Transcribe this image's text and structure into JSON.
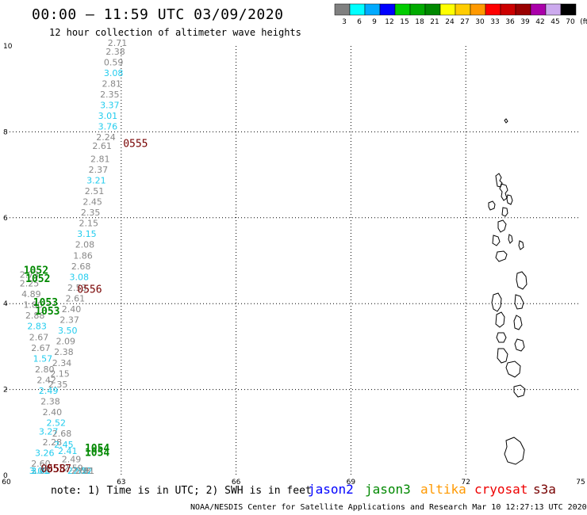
{
  "colors": {
    "jason2": "#0000ff",
    "jason3": "#008800",
    "altika": "#ff9900",
    "cryosat": "#ee0000",
    "s3a": "#770000",
    "grey_label": "#888888",
    "cyan_label": "#22ccee",
    "grid": "#000000",
    "land": "#000000"
  },
  "chart_data": {
    "type": "scatter",
    "title": "00:00 – 11:59 UTC 03/09/2020",
    "subtitle": "12 hour collection of altimeter wave heights",
    "xlim": [
      60,
      75
    ],
    "ylim": [
      0,
      10
    ],
    "x_ticks": [
      "60",
      "63",
      "66",
      "69",
      "72",
      "75"
    ],
    "y_ticks": [
      "0",
      "2",
      "4",
      "6",
      "8",
      "10"
    ],
    "grid": true,
    "colorbar": {
      "labels": [
        "3",
        "6",
        "9",
        "12",
        "15",
        "18",
        "21",
        "24",
        "27",
        "30",
        "33",
        "36",
        "39",
        "42",
        "45",
        "70",
        "(ft)"
      ],
      "colors": [
        "#808080",
        "#00ffff",
        "#00aaff",
        "#0000ff",
        "#00cc00",
        "#00aa00",
        "#008800",
        "#ffff00",
        "#ffcc00",
        "#ff9900",
        "#ff0000",
        "#cc0000",
        "#990000",
        "#aa00aa",
        "#ccaaee",
        "#000000"
      ]
    },
    "swh_points": [
      {
        "x": 62.9,
        "y": 10.0,
        "v": "2.71",
        "c": "grey"
      },
      {
        "x": 62.85,
        "y": 9.8,
        "v": "2.38",
        "c": "grey"
      },
      {
        "x": 62.8,
        "y": 9.55,
        "v": "0.59",
        "c": "grey"
      },
      {
        "x": 62.8,
        "y": 9.3,
        "v": "3.08",
        "c": "cyan"
      },
      {
        "x": 62.75,
        "y": 9.05,
        "v": "2.81",
        "c": "grey"
      },
      {
        "x": 62.7,
        "y": 8.8,
        "v": "2.35",
        "c": "grey"
      },
      {
        "x": 62.7,
        "y": 8.55,
        "v": "3.37",
        "c": "cyan"
      },
      {
        "x": 62.65,
        "y": 8.3,
        "v": "3.01",
        "c": "cyan"
      },
      {
        "x": 62.65,
        "y": 8.05,
        "v": "3.76",
        "c": "cyan"
      },
      {
        "x": 62.6,
        "y": 7.8,
        "v": "2.24",
        "c": "grey"
      },
      {
        "x": 62.5,
        "y": 7.6,
        "v": "2.61",
        "c": "grey"
      },
      {
        "x": 62.45,
        "y": 7.3,
        "v": "2.81",
        "c": "grey"
      },
      {
        "x": 62.4,
        "y": 7.05,
        "v": "2.37",
        "c": "grey"
      },
      {
        "x": 62.35,
        "y": 6.8,
        "v": "3.21",
        "c": "cyan"
      },
      {
        "x": 62.3,
        "y": 6.55,
        "v": "2.51",
        "c": "grey"
      },
      {
        "x": 62.25,
        "y": 6.3,
        "v": "2.45",
        "c": "grey"
      },
      {
        "x": 62.2,
        "y": 6.05,
        "v": "2.35",
        "c": "grey"
      },
      {
        "x": 62.15,
        "y": 5.8,
        "v": "2.15",
        "c": "grey"
      },
      {
        "x": 62.1,
        "y": 5.55,
        "v": "3.15",
        "c": "cyan"
      },
      {
        "x": 62.05,
        "y": 5.3,
        "v": "2.08",
        "c": "grey"
      },
      {
        "x": 62.0,
        "y": 5.05,
        "v": "1.86",
        "c": "grey"
      },
      {
        "x": 61.95,
        "y": 4.8,
        "v": "2.68",
        "c": "grey"
      },
      {
        "x": 61.9,
        "y": 4.55,
        "v": "3.08",
        "c": "cyan"
      },
      {
        "x": 61.85,
        "y": 4.3,
        "v": "2.53",
        "c": "grey"
      },
      {
        "x": 61.8,
        "y": 4.05,
        "v": "2.61",
        "c": "grey"
      },
      {
        "x": 61.7,
        "y": 3.8,
        "v": "2.40",
        "c": "grey"
      },
      {
        "x": 61.65,
        "y": 3.55,
        "v": "2.37",
        "c": "grey"
      },
      {
        "x": 61.6,
        "y": 3.3,
        "v": "3.50",
        "c": "cyan"
      },
      {
        "x": 61.55,
        "y": 3.05,
        "v": "2.09",
        "c": "grey"
      },
      {
        "x": 61.5,
        "y": 2.8,
        "v": "2.38",
        "c": "grey"
      },
      {
        "x": 61.45,
        "y": 2.55,
        "v": "2.34",
        "c": "grey"
      },
      {
        "x": 61.4,
        "y": 2.3,
        "v": "2.15",
        "c": "grey"
      },
      {
        "x": 61.35,
        "y": 2.05,
        "v": "2.35",
        "c": "grey"
      },
      {
        "x": 60.6,
        "y": 4.6,
        "v": "2.73",
        "c": "grey"
      },
      {
        "x": 60.6,
        "y": 4.4,
        "v": "2.25",
        "c": "grey"
      },
      {
        "x": 60.65,
        "y": 4.15,
        "v": "4.89",
        "c": "grey"
      },
      {
        "x": 60.7,
        "y": 3.9,
        "v": "1.80",
        "c": "grey"
      },
      {
        "x": 60.75,
        "y": 3.65,
        "v": "2.88",
        "c": "grey"
      },
      {
        "x": 60.8,
        "y": 3.4,
        "v": "2.83",
        "c": "cyan"
      },
      {
        "x": 60.85,
        "y": 3.15,
        "v": "2.67",
        "c": "grey"
      },
      {
        "x": 60.9,
        "y": 2.9,
        "v": "2.67",
        "c": "grey"
      },
      {
        "x": 60.95,
        "y": 2.65,
        "v": "1.57",
        "c": "cyan"
      },
      {
        "x": 61.0,
        "y": 2.4,
        "v": "2.80",
        "c": "grey"
      },
      {
        "x": 61.05,
        "y": 2.15,
        "v": "2.42",
        "c": "grey"
      },
      {
        "x": 61.1,
        "y": 1.9,
        "v": "2.49",
        "c": "cyan"
      },
      {
        "x": 61.15,
        "y": 1.65,
        "v": "2.38",
        "c": "grey"
      },
      {
        "x": 61.2,
        "y": 1.4,
        "v": "2.40",
        "c": "grey"
      },
      {
        "x": 61.3,
        "y": 1.15,
        "v": "2.52",
        "c": "cyan"
      },
      {
        "x": 61.1,
        "y": 0.95,
        "v": "3.27",
        "c": "cyan"
      },
      {
        "x": 61.45,
        "y": 0.9,
        "v": "2.68",
        "c": "grey"
      },
      {
        "x": 61.2,
        "y": 0.7,
        "v": "2.28",
        "c": "grey"
      },
      {
        "x": 61.5,
        "y": 0.65,
        "v": "2.45",
        "c": "cyan"
      },
      {
        "x": 61.0,
        "y": 0.45,
        "v": "3.26",
        "c": "cyan"
      },
      {
        "x": 61.6,
        "y": 0.5,
        "v": "2.41",
        "c": "cyan"
      },
      {
        "x": 61.7,
        "y": 0.3,
        "v": "2.49",
        "c": "grey"
      },
      {
        "x": 60.9,
        "y": 0.2,
        "v": "2.60",
        "c": "grey"
      },
      {
        "x": 61.75,
        "y": 0.1,
        "v": "2.59",
        "c": "grey"
      },
      {
        "x": 60.9,
        "y": -0.05,
        "v": "2.08",
        "c": "grey"
      },
      {
        "x": 61.85,
        "y": -0.15,
        "v": "2.52",
        "c": "cyan"
      },
      {
        "x": 60.9,
        "y": -0.3,
        "v": "3.41",
        "c": "cyan"
      },
      {
        "x": 61.95,
        "y": -0.35,
        "v": "2.68",
        "c": "grey"
      },
      {
        "x": 60.85,
        "y": -0.5,
        "v": "3.01",
        "c": "cyan"
      },
      {
        "x": 62.0,
        "y": -0.55,
        "v": "2.52",
        "c": "cyan"
      },
      {
        "x": 62.05,
        "y": -0.7,
        "v": "2.81",
        "c": "grey"
      }
    ],
    "pass_labels": [
      {
        "x": 63.05,
        "y": 7.65,
        "label": "0555",
        "sat": "s3a"
      },
      {
        "x": 61.85,
        "y": 4.25,
        "label": "0556",
        "sat": "s3a"
      },
      {
        "x": 61.05,
        "y": -0.05,
        "label": "0557",
        "sat": "s3a"
      },
      {
        "x": 60.9,
        "y": -0.45,
        "label": "0558",
        "sat": "s3a"
      },
      {
        "x": 60.45,
        "y": 4.7,
        "label": "1052",
        "sat": "jason3"
      },
      {
        "x": 60.5,
        "y": 4.5,
        "label": "1052",
        "sat": "jason3"
      },
      {
        "x": 60.7,
        "y": 3.95,
        "label": "1053",
        "sat": "jason3"
      },
      {
        "x": 60.75,
        "y": 3.75,
        "label": "1053",
        "sat": "jason3"
      },
      {
        "x": 62.05,
        "y": 0.55,
        "label": "1054",
        "sat": "jason3"
      },
      {
        "x": 62.05,
        "y": 0.45,
        "label": "1054",
        "sat": "jason3"
      }
    ]
  },
  "footer": {
    "note": "note: 1) Time is in UTC; 2) SWH is in feet",
    "credit": "NOAA/NESDIS Center for Satellite Applications and Research   Mar 10 12:27:13 UTC 2020",
    "satellites": [
      {
        "key": "jason2",
        "label": "jason2"
      },
      {
        "key": "jason3",
        "label": "jason3"
      },
      {
        "key": "altika",
        "label": "altika"
      },
      {
        "key": "cryosat",
        "label": "cryosat"
      },
      {
        "key": "s3a",
        "label": "s3a"
      }
    ]
  }
}
